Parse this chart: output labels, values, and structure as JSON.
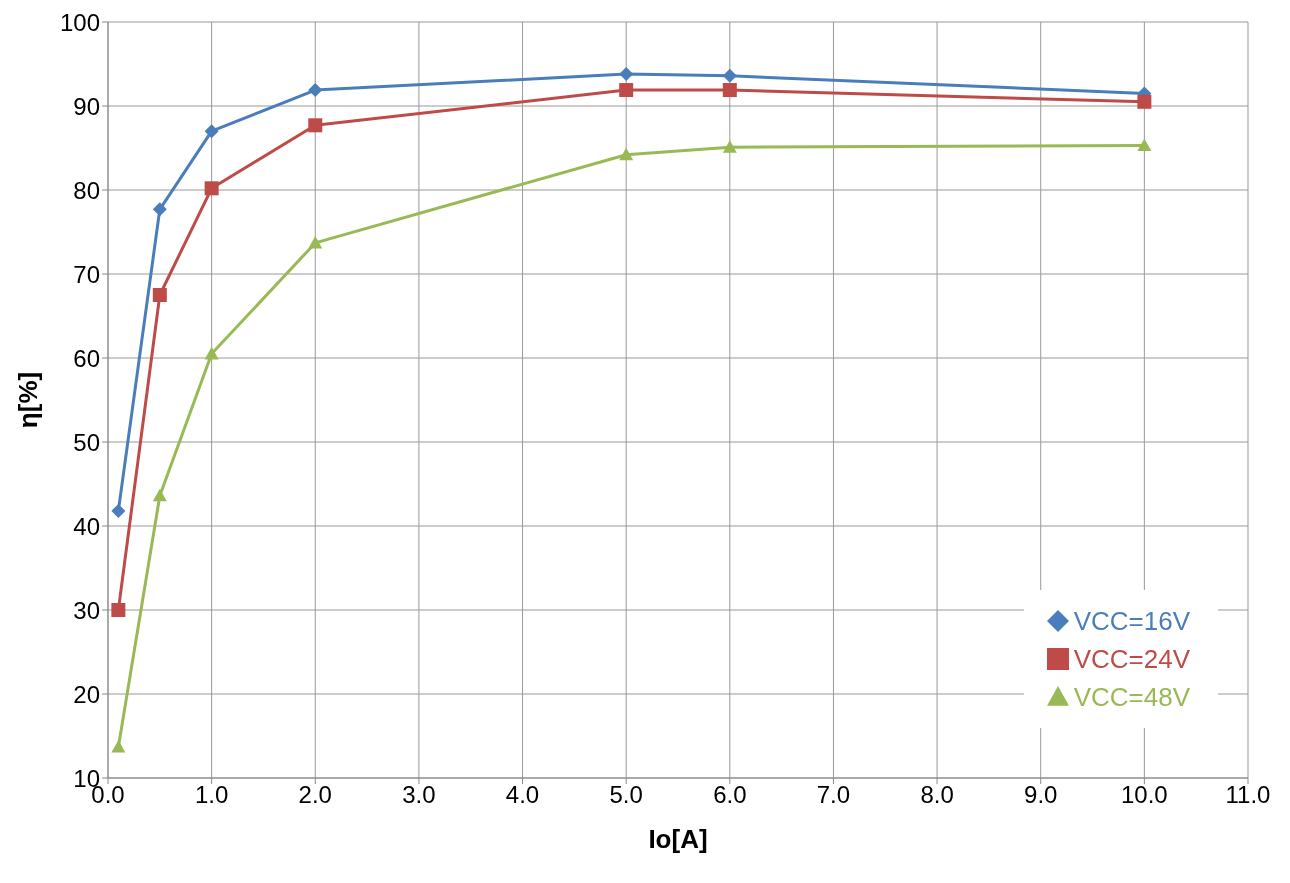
{
  "chart_data": {
    "type": "line",
    "xlabel": "Io[A]",
    "ylabel": "η[%]",
    "x": [
      0.1,
      0.5,
      1.0,
      2.0,
      5.0,
      6.0,
      10.0
    ],
    "series": [
      {
        "name": "VCC=16V",
        "color": "#4a7ebb",
        "marker": "diamond",
        "values": [
          41.8,
          77.7,
          87.0,
          91.9,
          93.8,
          93.6,
          91.5
        ]
      },
      {
        "name": "VCC=24V",
        "color": "#be4b48",
        "marker": "square",
        "values": [
          30.0,
          67.5,
          80.2,
          87.7,
          91.9,
          91.9,
          90.5
        ]
      },
      {
        "name": "VCC=48V",
        "color": "#98b954",
        "marker": "triangle",
        "values": [
          13.7,
          43.6,
          60.5,
          73.7,
          84.2,
          85.1,
          85.3
        ]
      }
    ],
    "xlim": [
      0,
      11
    ],
    "xticks": [
      {
        "value": 0,
        "label": "0.0"
      },
      {
        "value": 1,
        "label": "1.0"
      },
      {
        "value": 2,
        "label": "2.0"
      },
      {
        "value": 3,
        "label": "3.0"
      },
      {
        "value": 4,
        "label": "4.0"
      },
      {
        "value": 5,
        "label": "5.0"
      },
      {
        "value": 6,
        "label": "6.0"
      },
      {
        "value": 7,
        "label": "7.0"
      },
      {
        "value": 8,
        "label": "8.0"
      },
      {
        "value": 9,
        "label": "9.0"
      },
      {
        "value": 10,
        "label": "10.0"
      },
      {
        "value": 11,
        "label": "11.0"
      }
    ],
    "ylim": [
      10,
      100
    ],
    "yticks": [
      10,
      20,
      30,
      40,
      50,
      60,
      70,
      80,
      90,
      100
    ],
    "grid": true,
    "legend": "bottom right",
    "line_style": "solid"
  }
}
